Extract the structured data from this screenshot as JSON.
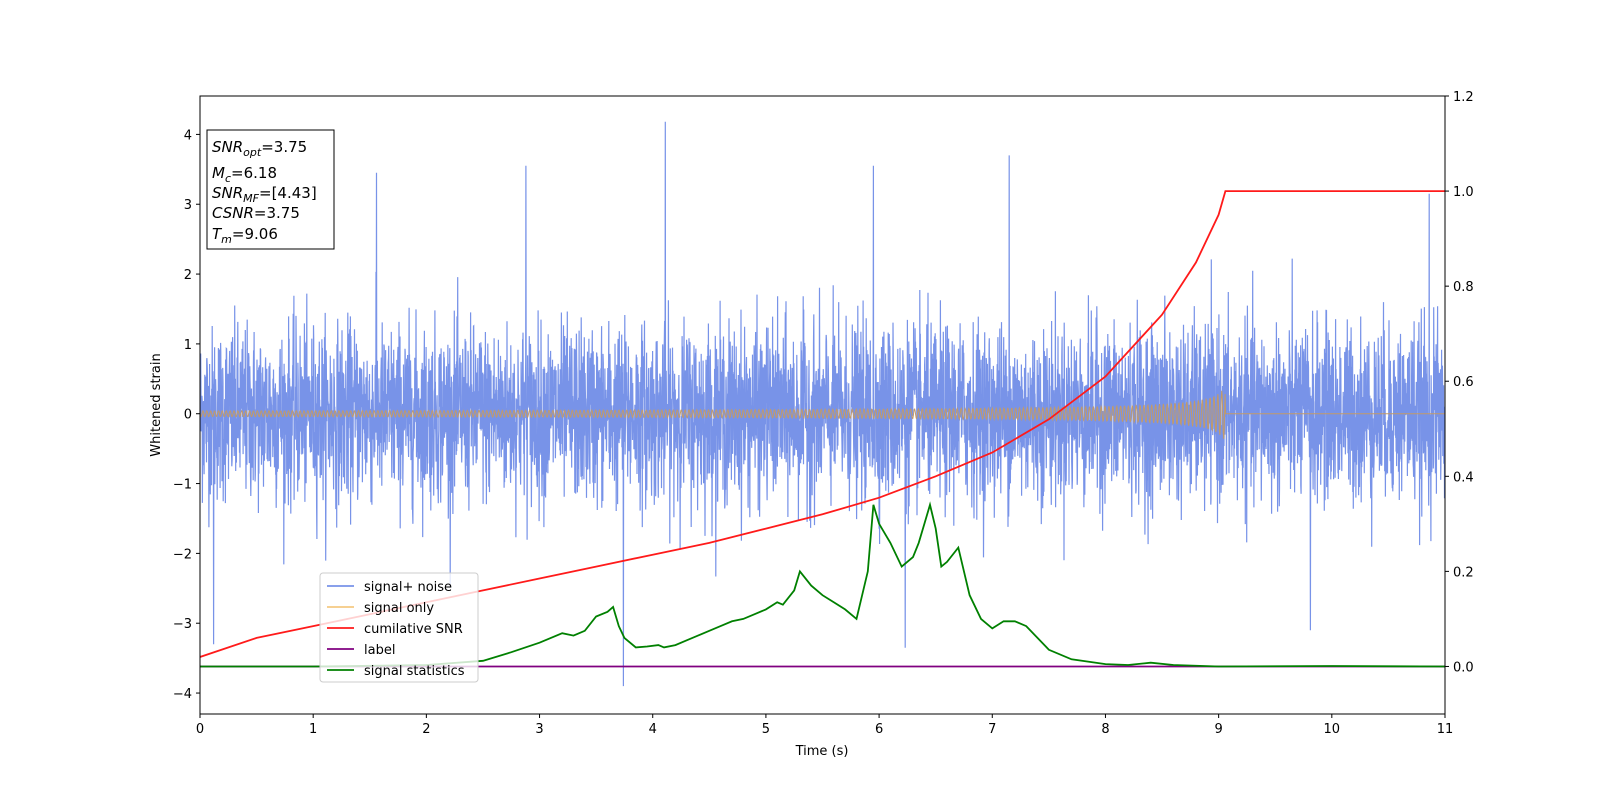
{
  "chart_data": {
    "type": "line",
    "title": "",
    "xlabel": "Time (s)",
    "ylabel": "Whitened strain",
    "xlim": [
      0,
      11
    ],
    "ylim": [
      -4.3,
      4.55
    ],
    "y2lim": [
      -0.1,
      1.2
    ],
    "x_ticks": [
      "0",
      "1",
      "2",
      "3",
      "4",
      "5",
      "6",
      "7",
      "8",
      "9",
      "10",
      "11"
    ],
    "y_ticks": [
      "−4",
      "−3",
      "−2",
      "−1",
      "0",
      "1",
      "2",
      "3",
      "4"
    ],
    "y2_ticks": [
      "0.0",
      "0.2",
      "0.4",
      "0.6",
      "0.8",
      "1.0",
      "1.2"
    ],
    "legend_position": "lower-left",
    "legend": [
      {
        "name": "signal+ noise",
        "color": "#7893e8"
      },
      {
        "name": "signal only",
        "color": "#f5c983"
      },
      {
        "name": "cumilative SNR",
        "color": "#ff1a1a"
      },
      {
        "name": "label",
        "color": "#800080"
      },
      {
        "name": "signal statistics",
        "color": "#008000"
      }
    ],
    "info_box": {
      "snr_opt_main": "SNR",
      "snr_opt_sub": "opt",
      "snr_opt_value": "=3.75",
      "mc_main": "M",
      "mc_sub": "c",
      "mc_value": "=6.18",
      "snr_mf_main": "SNR",
      "snr_mf_sub": "MF",
      "snr_mf_value": "=[4.43]",
      "csnr_main": "CSNR",
      "csnr_value": "=3.75",
      "tm_main": "T",
      "tm_sub": "m",
      "tm_value": "=9.06"
    },
    "series": [
      {
        "name": "signal+ noise",
        "axis": "left",
        "style": "noise",
        "x_range": [
          0,
          11
        ],
        "envelope": 1.3,
        "spikes": [
          {
            "x": 4.11,
            "y": 4.18
          },
          {
            "x": 3.74,
            "y": -3.9
          },
          {
            "x": 7.15,
            "y": 3.7
          },
          {
            "x": 2.88,
            "y": 3.55
          },
          {
            "x": 5.95,
            "y": 3.55
          },
          {
            "x": 1.56,
            "y": 3.45
          },
          {
            "x": 6.23,
            "y": -3.35
          },
          {
            "x": 9.81,
            "y": -3.1
          },
          {
            "x": 0.12,
            "y": -3.3
          },
          {
            "x": 10.86,
            "y": 3.15
          }
        ]
      },
      {
        "name": "signal only",
        "axis": "left",
        "style": "chirp",
        "end_x": 9.06,
        "max_amplitude": 0.4
      },
      {
        "name": "cumilative SNR",
        "axis": "right",
        "x": [
          0,
          0.5,
          1,
          1.5,
          2,
          2.5,
          3,
          3.5,
          4,
          4.5,
          5,
          5.5,
          6,
          6.5,
          7,
          7.5,
          8,
          8.5,
          8.8,
          9.0,
          9.06,
          11
        ],
        "y": [
          0.02,
          0.06,
          0.085,
          0.11,
          0.135,
          0.16,
          0.185,
          0.21,
          0.235,
          0.26,
          0.29,
          0.32,
          0.355,
          0.4,
          0.45,
          0.52,
          0.61,
          0.74,
          0.85,
          0.95,
          1.0,
          1.0
        ]
      },
      {
        "name": "label",
        "axis": "right",
        "x": [
          0,
          11
        ],
        "y": [
          0.0,
          0.0
        ]
      },
      {
        "name": "signal statistics",
        "axis": "right",
        "x": [
          0,
          1,
          2,
          2.5,
          2.75,
          3.0,
          3.2,
          3.3,
          3.4,
          3.5,
          3.6,
          3.65,
          3.7,
          3.75,
          3.85,
          3.95,
          4.05,
          4.1,
          4.2,
          4.3,
          4.4,
          4.5,
          4.6,
          4.7,
          4.8,
          4.9,
          5.0,
          5.1,
          5.15,
          5.25,
          5.3,
          5.4,
          5.5,
          5.6,
          5.7,
          5.8,
          5.9,
          5.95,
          6.0,
          6.1,
          6.2,
          6.3,
          6.35,
          6.4,
          6.45,
          6.5,
          6.55,
          6.6,
          6.7,
          6.8,
          6.9,
          7.0,
          7.1,
          7.2,
          7.3,
          7.4,
          7.5,
          7.7,
          8.0,
          8.2,
          8.4,
          8.6,
          9.0,
          10.0,
          11.0
        ],
        "y": [
          0.0,
          0.0,
          0.003,
          0.012,
          0.03,
          0.05,
          0.07,
          0.065,
          0.075,
          0.105,
          0.115,
          0.125,
          0.085,
          0.06,
          0.04,
          0.042,
          0.045,
          0.04,
          0.045,
          0.055,
          0.065,
          0.075,
          0.085,
          0.095,
          0.1,
          0.11,
          0.12,
          0.135,
          0.13,
          0.16,
          0.2,
          0.17,
          0.15,
          0.135,
          0.12,
          0.1,
          0.2,
          0.34,
          0.3,
          0.26,
          0.21,
          0.23,
          0.26,
          0.3,
          0.34,
          0.29,
          0.21,
          0.22,
          0.25,
          0.15,
          0.1,
          0.08,
          0.095,
          0.095,
          0.085,
          0.06,
          0.035,
          0.015,
          0.005,
          0.003,
          0.008,
          0.003,
          0.0,
          0.001,
          0.0
        ]
      }
    ]
  }
}
